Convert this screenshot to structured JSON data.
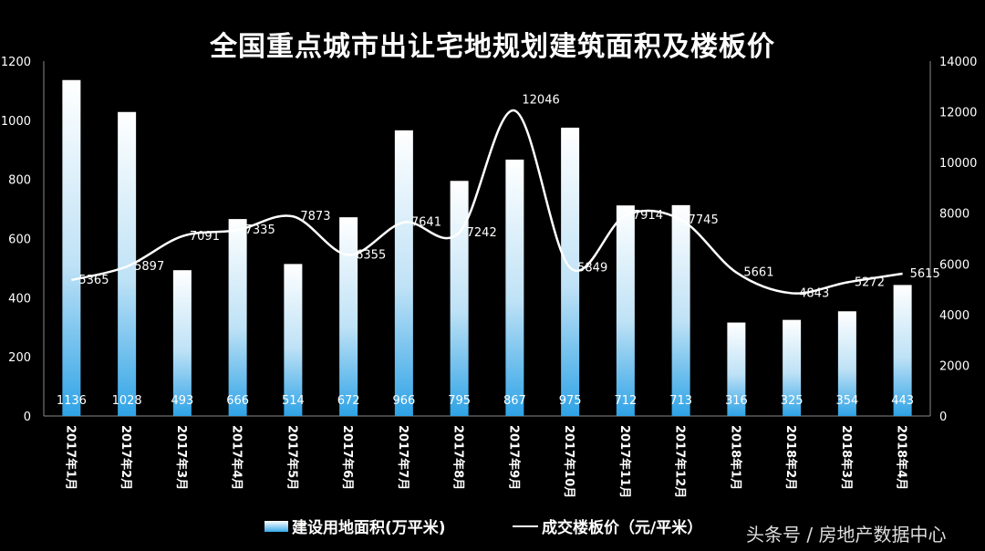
{
  "chart_data": {
    "type": "bar+line",
    "title": "全国重点城市出让宅地规划建筑面积及楼板价",
    "categories": [
      "2017年1月",
      "2017年2月",
      "2017年3月",
      "2017年4月",
      "2017年5月",
      "2017年6月",
      "2017年7月",
      "2017年8月",
      "2017年9月",
      "2017年10月",
      "2017年11月",
      "2017年12月",
      "2018年1月",
      "2018年2月",
      "2018年3月",
      "2018年4月"
    ],
    "series": [
      {
        "name": "建设用地面积(万平米)",
        "type": "bar",
        "axis": "left",
        "values": [
          1136,
          1028,
          493,
          666,
          514,
          672,
          966,
          795,
          867,
          975,
          712,
          713,
          316,
          325,
          354,
          443
        ]
      },
      {
        "name": "成交楼板价（元/平米）",
        "type": "line",
        "axis": "right",
        "values": [
          5365,
          5897,
          7091,
          7335,
          7873,
          6355,
          7641,
          7242,
          12046,
          5849,
          7914,
          7745,
          5661,
          4843,
          5272,
          5615
        ]
      }
    ],
    "left_axis": {
      "ylim": [
        0,
        1200
      ],
      "ticks": [
        0,
        200,
        400,
        600,
        800,
        1000,
        1200
      ]
    },
    "right_axis": {
      "ylim": [
        0,
        14000
      ],
      "ticks": [
        0,
        2000,
        4000,
        6000,
        8000,
        10000,
        12000,
        14000
      ]
    },
    "legend_placement": "bottom",
    "grid": false,
    "colors": {
      "background": "#000000",
      "bar_top": "#ffffff",
      "bar_bottom": "#3aa8e8",
      "line": "#ffffff"
    }
  },
  "watermark": "头条号 / 房地产数据中心"
}
